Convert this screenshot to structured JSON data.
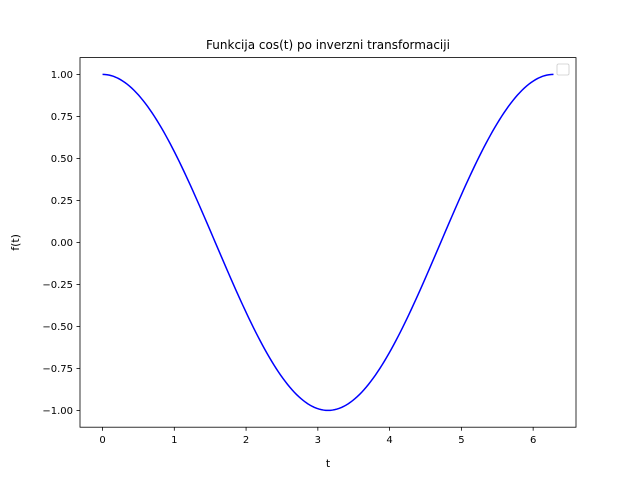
{
  "chart_data": {
    "type": "line",
    "title": "Funkcija cos(t) po inverzni transformaciji",
    "xlabel": "t",
    "ylabel": "f(t)",
    "xlim": [
      -0.314,
      6.597
    ],
    "ylim": [
      -1.1,
      1.1
    ],
    "x_ticks": [
      0,
      1,
      2,
      3,
      4,
      5,
      6
    ],
    "x_tick_labels": [
      "0",
      "1",
      "2",
      "3",
      "4",
      "5",
      "6"
    ],
    "y_ticks": [
      1.0,
      0.75,
      0.5,
      0.25,
      0.0,
      -0.25,
      -0.5,
      -0.75,
      -1.0
    ],
    "y_tick_labels": [
      "1.00",
      "0.75",
      "0.50",
      "0.25",
      "0.00",
      "−0.25",
      "−0.50",
      "−0.75",
      "−1.00"
    ],
    "grid": false,
    "legend": {
      "placement": "top-right",
      "entries": []
    },
    "series": [
      {
        "color": "#0000ff",
        "x": [
          0,
          0.2618,
          0.5236,
          0.7854,
          1.0472,
          1.309,
          1.5708,
          1.8326,
          2.0944,
          2.3562,
          2.618,
          2.8798,
          3.1416,
          3.4034,
          3.6652,
          3.927,
          4.1888,
          4.4506,
          4.7124,
          4.9742,
          5.236,
          5.4978,
          5.7596,
          6.0214,
          6.2832
        ],
        "values": [
          1.0,
          0.966,
          0.866,
          0.707,
          0.5,
          0.259,
          0.0,
          -0.259,
          -0.5,
          -0.707,
          -0.866,
          -0.966,
          -1.0,
          -0.966,
          -0.866,
          -0.707,
          -0.5,
          -0.259,
          0.0,
          0.259,
          0.5,
          0.707,
          0.866,
          0.966,
          1.0
        ]
      }
    ]
  }
}
